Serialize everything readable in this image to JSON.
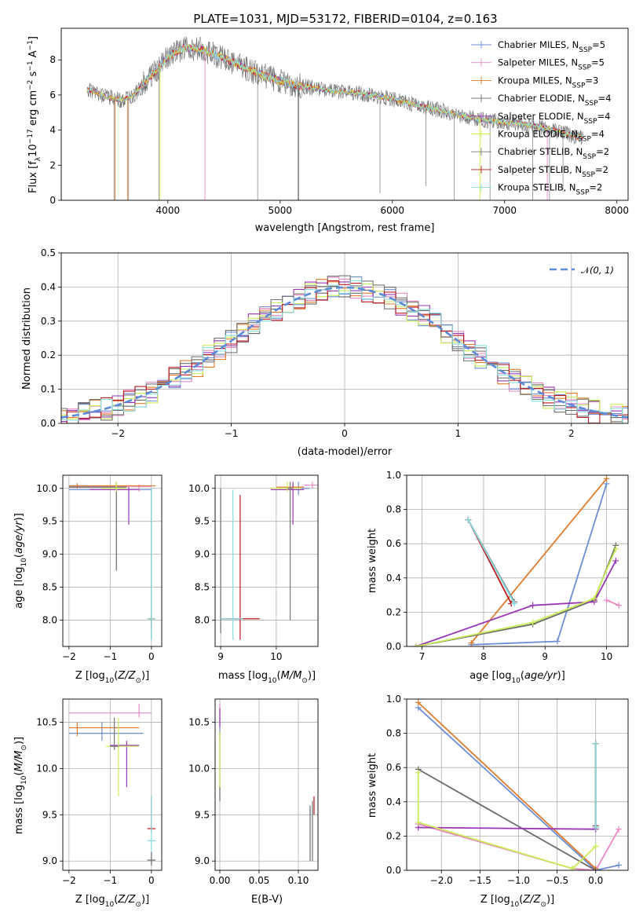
{
  "title": "PLATE=1031, MJD=53172, FIBERID=0104, z=0.163",
  "colors": [
    "#6b8ed6",
    "#e889c4",
    "#e07b2c",
    "#6a6a6a",
    "#9a35b6",
    "#c9ee55",
    "#777777",
    "#c01820",
    "#86dede"
  ],
  "series_names": [
    "Chabrier MILES, N_SSP=5",
    "Salpeter MILES, N_SSP=5",
    "Kroupa MILES, N_SSP=3",
    "Chabrier ELODIE, N_SSP=4",
    "Salpeter ELODIE, N_SSP=4",
    "Kroupa ELODIE, N_SSP=4",
    "Chabrier STELIB, N_SSP=2",
    "Salpeter STELIB, N_SSP=2",
    "Kroupa STELIB, N_SSP=2"
  ],
  "chart_data": [
    {
      "id": "spectrum",
      "type": "line",
      "xlabel": "wavelength [Angstrom, rest frame]",
      "ylabel": "Flux [f_λ 10^-17 erg cm^-2 s^-1 A^-1]",
      "xlim": [
        3050,
        8100
      ],
      "ylim": [
        0,
        9.8
      ],
      "xticks": [
        4000,
        5000,
        6000,
        7000,
        8000
      ],
      "yticks": [
        0,
        2,
        4,
        6,
        8
      ],
      "grid": false,
      "legend": "upper right",
      "continuum": [
        [
          3300,
          6.3
        ],
        [
          3450,
          5.9
        ],
        [
          3600,
          5.7
        ],
        [
          3700,
          6.0
        ],
        [
          3800,
          6.8
        ],
        [
          3900,
          7.4
        ],
        [
          4000,
          8.2
        ],
        [
          4150,
          8.7
        ],
        [
          4300,
          8.6
        ],
        [
          4500,
          8.1
        ],
        [
          4700,
          7.5
        ],
        [
          4900,
          7.0
        ],
        [
          5100,
          6.6
        ],
        [
          5300,
          6.4
        ],
        [
          5500,
          6.2
        ],
        [
          5700,
          6.1
        ],
        [
          5900,
          5.9
        ],
        [
          6100,
          5.6
        ],
        [
          6300,
          5.3
        ],
        [
          6500,
          5.0
        ],
        [
          6700,
          4.7
        ],
        [
          6900,
          4.5
        ],
        [
          7100,
          4.4
        ],
        [
          7300,
          4.2
        ],
        [
          7500,
          3.9
        ],
        [
          7650,
          3.6
        ]
      ]
    },
    {
      "id": "residual_hist",
      "type": "line",
      "xlabel": "(data-model)/error",
      "ylabel": "Normed distribution",
      "xlim": [
        -2.5,
        2.5
      ],
      "ylim": [
        0,
        0.5
      ],
      "xticks": [
        -2,
        -1,
        0,
        1,
        2
      ],
      "yticks": [
        0.0,
        0.1,
        0.2,
        0.3,
        0.4,
        0.5
      ],
      "grid": true,
      "legend": "upper right",
      "reference_name": "N(0,1)",
      "bin_width": 0.1
    },
    {
      "id": "age_vs_Z",
      "type": "scatter",
      "xlabel": "Z [log10(Z/Z⊙)]",
      "ylabel": "age [log10(age/yr)]",
      "xlim": [
        -2.15,
        0.25
      ],
      "ylim": [
        7.6,
        10.2
      ],
      "xticks": [
        -2,
        -1,
        0
      ],
      "yticks": [
        8.0,
        8.5,
        9.0,
        9.5,
        10.0
      ],
      "grid": true
    },
    {
      "id": "age_vs_mass",
      "type": "scatter",
      "xlabel": "mass [log10(M/M⊙)]",
      "ylabel": "",
      "xlim": [
        8.9,
        10.75
      ],
      "ylim": [
        7.6,
        10.2
      ],
      "xticks": [
        9,
        10
      ],
      "yticks": [
        8.0,
        8.5,
        9.0,
        9.5,
        10.0
      ],
      "grid": true
    },
    {
      "id": "weight_vs_age",
      "type": "line",
      "xlabel": "age [log10(age/yr)]",
      "ylabel": "mass weight",
      "xlim": [
        6.75,
        10.35
      ],
      "ylim": [
        0,
        1
      ],
      "xticks": [
        7,
        8,
        9,
        10
      ],
      "yticks": [
        0.0,
        0.2,
        0.4,
        0.6,
        0.8,
        1.0
      ],
      "grid": true,
      "series": [
        {
          "x": [
            7.8,
            9.2,
            10.0
          ],
          "y": [
            0.01,
            0.03,
            0.95
          ]
        },
        {
          "x": [
            10.2,
            10.0
          ],
          "y": [
            0.24,
            0.27
          ]
        },
        {
          "x": [
            7.8,
            10.0
          ],
          "y": [
            0.02,
            0.98
          ]
        },
        {
          "x": [
            6.9,
            8.8,
            9.8,
            10.15
          ],
          "y": [
            0.0,
            0.13,
            0.27,
            0.59
          ]
        },
        {
          "x": [
            6.9,
            8.8,
            9.8,
            10.15
          ],
          "y": [
            0.0,
            0.24,
            0.26,
            0.5
          ]
        },
        {
          "x": [
            6.9,
            8.8,
            9.8,
            10.15
          ],
          "y": [
            0.0,
            0.14,
            0.28,
            0.57
          ]
        },
        {
          "x": [
            7.75,
            8.5
          ],
          "y": [
            0.74,
            0.26
          ]
        },
        {
          "x": [
            7.75,
            8.45
          ],
          "y": [
            0.74,
            0.25
          ]
        },
        {
          "x": [
            7.75,
            8.5
          ],
          "y": [
            0.74,
            0.25
          ]
        }
      ]
    },
    {
      "id": "mass_vs_Z",
      "type": "scatter",
      "xlabel": "Z [log10(Z/Z⊙)]",
      "ylabel": "mass [log10(M/M⊙)]",
      "xlim": [
        -2.15,
        0.25
      ],
      "ylim": [
        8.9,
        10.75
      ],
      "xticks": [
        -2,
        -1,
        0
      ],
      "yticks": [
        9.0,
        9.5,
        10.0,
        10.5
      ],
      "grid": true
    },
    {
      "id": "mass_vs_EBV",
      "type": "scatter",
      "xlabel": "E(B-V)",
      "ylabel": "",
      "xlim": [
        -0.006,
        0.125
      ],
      "ylim": [
        8.9,
        10.75
      ],
      "xticks": [
        0.0,
        0.05,
        0.1
      ],
      "yticks": [
        9.0,
        9.5,
        10.0,
        10.5
      ],
      "grid": true
    },
    {
      "id": "weight_vs_Z",
      "type": "line",
      "xlabel": "Z [log10(Z/Z⊙)]",
      "ylabel": "mass weight",
      "xlim": [
        -2.45,
        0.42
      ],
      "ylim": [
        0,
        1
      ],
      "xticks": [
        -2.0,
        -1.5,
        -1.0,
        -0.5,
        0.0
      ],
      "yticks": [
        0.0,
        0.2,
        0.4,
        0.6,
        0.8,
        1.0
      ],
      "grid": true,
      "series": [
        {
          "x": [
            -2.3,
            0.0,
            0.3
          ],
          "y": [
            0.95,
            0.0,
            0.03
          ]
        },
        {
          "x": [
            -2.3,
            -0.3,
            0.0,
            0.3
          ],
          "y": [
            0.27,
            0.01,
            0.0,
            0.24
          ]
        },
        {
          "x": [
            -2.3,
            0.0
          ],
          "y": [
            0.98,
            0.01
          ]
        },
        {
          "x": [
            -2.3,
            0.0
          ],
          "y": [
            0.59,
            0.0
          ]
        },
        {
          "x": [
            -2.3,
            0.0,
            0.0
          ],
          "y": [
            0.25,
            0.24,
            0.26
          ]
        },
        {
          "x": [
            -2.3,
            -2.3,
            -0.3,
            0.0
          ],
          "y": [
            0.57,
            0.28,
            0.01,
            0.14
          ]
        },
        {
          "x": [
            0.0,
            0.0
          ],
          "y": [
            0.74,
            0.26
          ]
        },
        {
          "x": [
            0.0,
            0.0
          ],
          "y": [
            0.74,
            0.25
          ]
        },
        {
          "x": [
            0.0,
            0.0
          ],
          "y": [
            0.74,
            0.25
          ]
        }
      ]
    }
  ]
}
